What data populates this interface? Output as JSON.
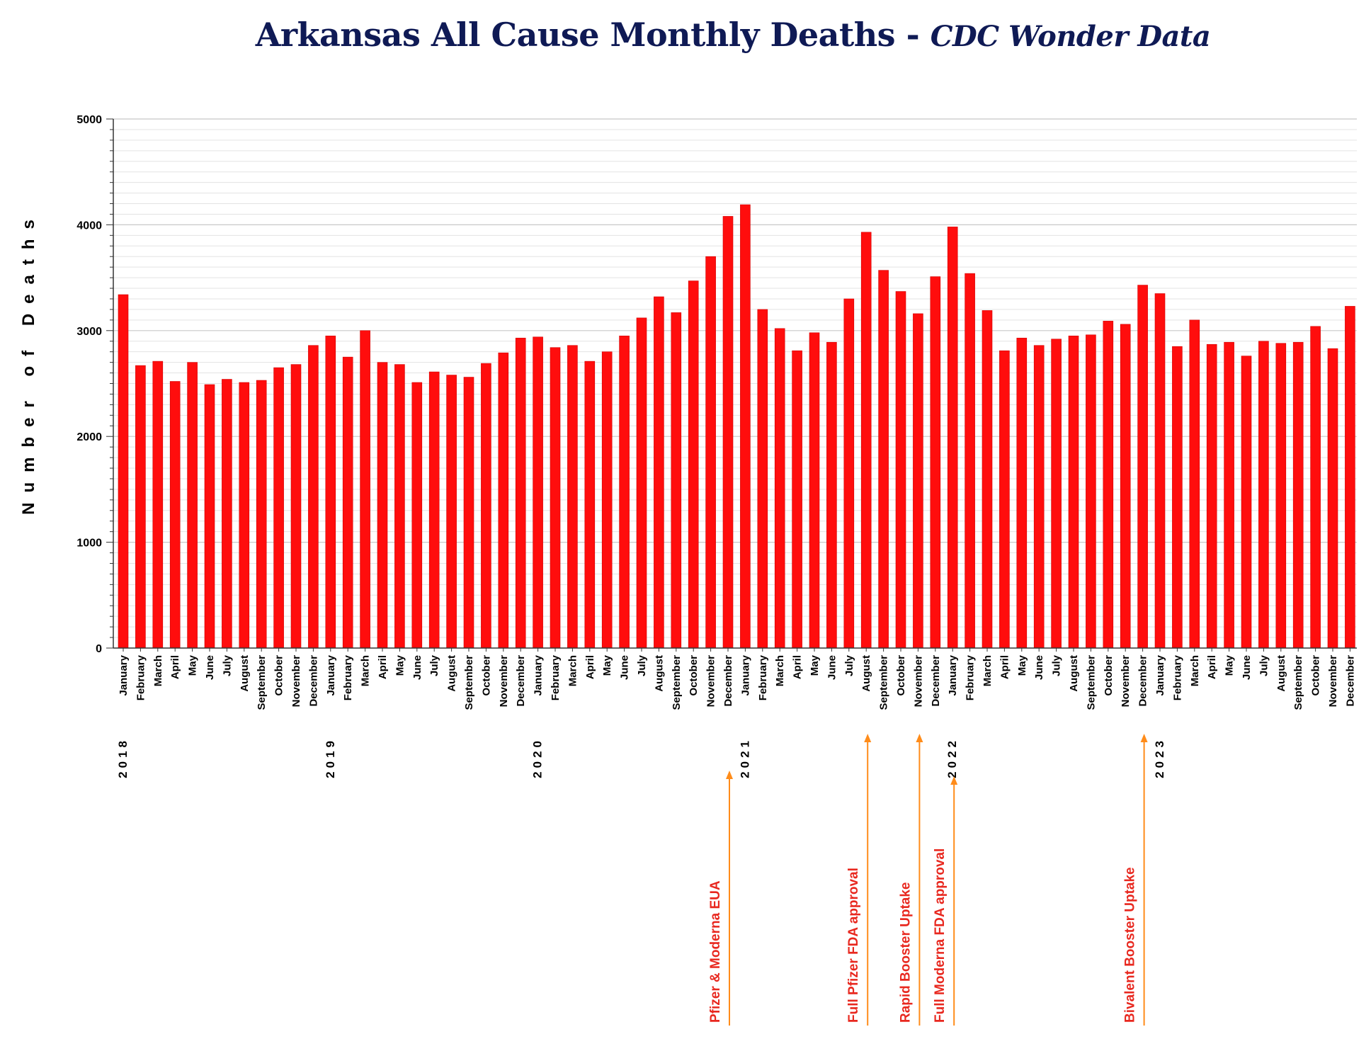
{
  "chart_data": {
    "type": "bar",
    "title": "Arkansas All Cause Monthly Deaths - ",
    "subtitle": "CDC Wonder Data",
    "ylabel": "Number of Deaths",
    "xlabel": "",
    "ylim": [
      0,
      5000
    ],
    "yticks": [
      0,
      1000,
      2000,
      3000,
      4000,
      5000
    ],
    "grid": true,
    "legend": "none",
    "bar_color": "#ff0d0d",
    "annotation_color": "#ff8c1a",
    "annotation_text_color": "#e8281f",
    "years": [
      "2018",
      "2019",
      "2020",
      "2021",
      "2022",
      "2023"
    ],
    "categories": [
      "January",
      "February",
      "March",
      "April",
      "May",
      "June",
      "July",
      "August",
      "September",
      "October",
      "November",
      "December",
      "January",
      "February",
      "March",
      "April",
      "May",
      "June",
      "July",
      "August",
      "September",
      "October",
      "November",
      "December",
      "January",
      "February",
      "March",
      "April",
      "May",
      "June",
      "July",
      "August",
      "September",
      "October",
      "November",
      "December",
      "January",
      "February",
      "March",
      "April",
      "May",
      "June",
      "July",
      "August",
      "September",
      "October",
      "November",
      "December",
      "January",
      "February",
      "March",
      "April",
      "May",
      "June",
      "July",
      "August",
      "September",
      "October",
      "November",
      "December",
      "January",
      "February",
      "March",
      "April",
      "May",
      "June",
      "July",
      "August",
      "September",
      "October",
      "November",
      "December"
    ],
    "values": [
      3340,
      2670,
      2710,
      2520,
      2700,
      2490,
      2540,
      2510,
      2530,
      2650,
      2680,
      2860,
      2950,
      2750,
      3000,
      2700,
      2680,
      2510,
      2610,
      2580,
      2560,
      2690,
      2790,
      2930,
      2940,
      2840,
      2860,
      2710,
      2800,
      2950,
      3120,
      3320,
      3170,
      3470,
      3700,
      4080,
      4190,
      3200,
      3020,
      2810,
      2980,
      2890,
      3300,
      3930,
      3570,
      3370,
      3160,
      3510,
      3980,
      3540,
      3190,
      2810,
      2930,
      2860,
      2920,
      2950,
      2960,
      3090,
      3060,
      3430,
      3350,
      2850,
      3100,
      2870,
      2890,
      2760,
      2900,
      2880,
      2890,
      3040,
      2830,
      3230
    ],
    "annotations": [
      {
        "label": "Pfizer & Moderna EUA",
        "at": "2020 December"
      },
      {
        "label": "Full Pfizer FDA approval",
        "at": "2021 August"
      },
      {
        "label": "Rapid Booster Uptake",
        "at": "2021 November"
      },
      {
        "label": "Full Moderna FDA approval",
        "at": "2022 January"
      },
      {
        "label": "Bivalent Booster Uptake",
        "at": "2022 December"
      }
    ]
  }
}
